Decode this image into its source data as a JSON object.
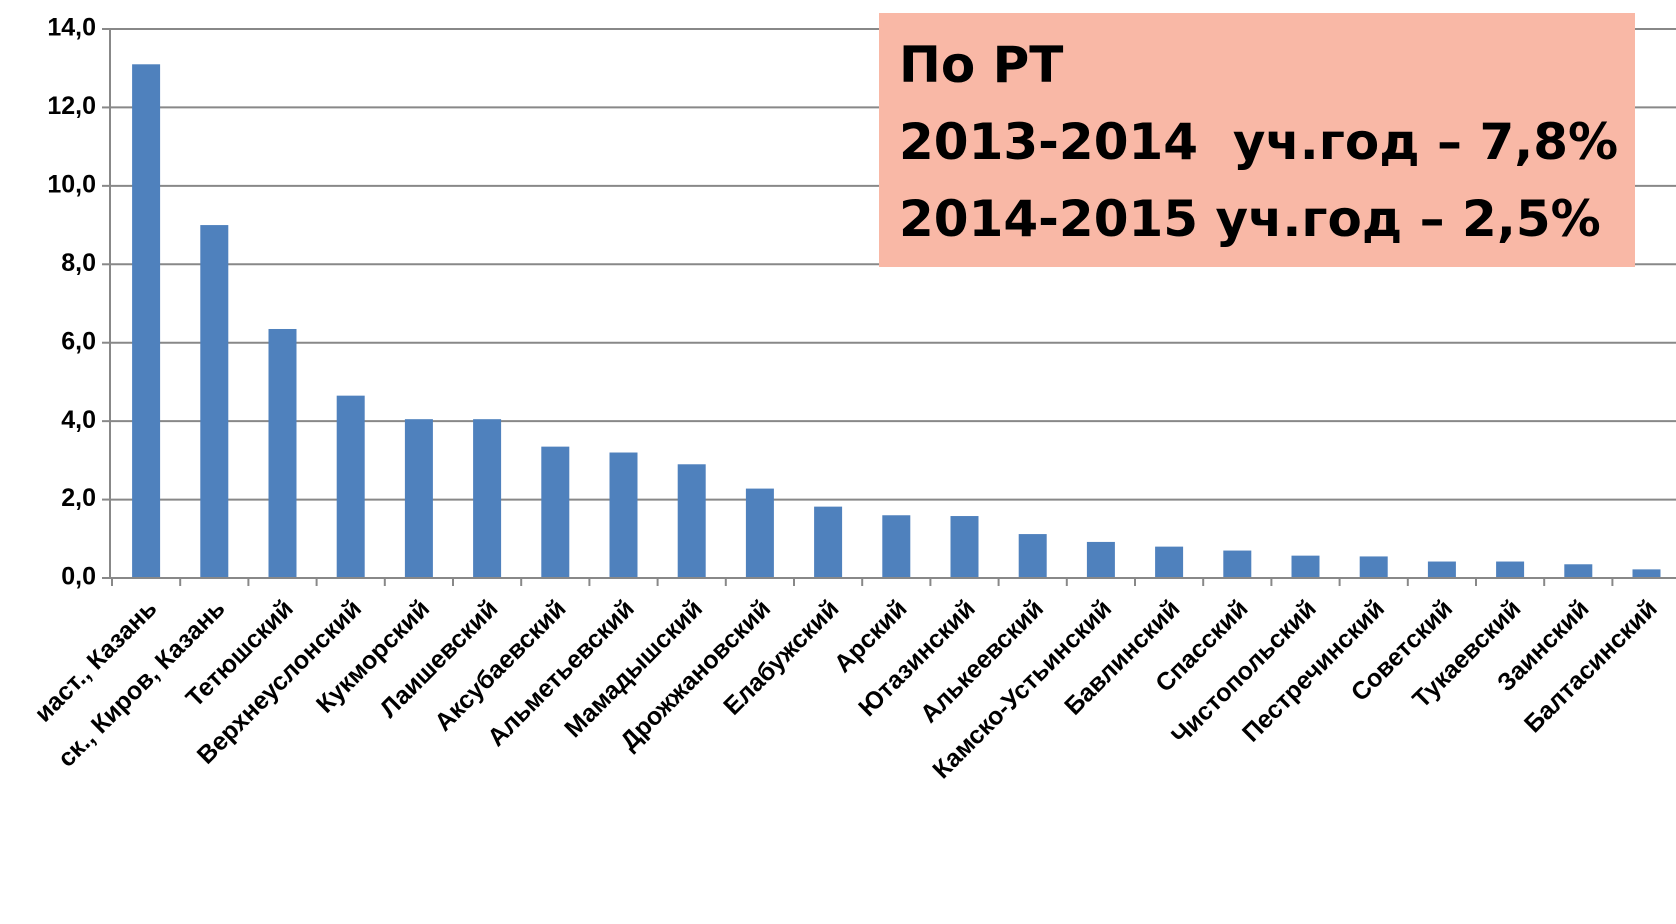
{
  "chart_data": {
    "type": "bar",
    "categories": [
      "иаст., Казань",
      "ск., Киров, Казань",
      "Тетюшский",
      "Верхнеуслонский",
      "Кукморский",
      "Лаишевский",
      "Аксубаевский",
      "Альметьевский",
      "Мамадышский",
      "Дрожжановский",
      "Елабужский",
      "Арский",
      "Ютазинский",
      "Алькеевский",
      "Камско-Устьинский",
      "Бавлинский",
      "Спасский",
      "Чистопольский",
      "Пестречинский",
      "Советский",
      "Тукаевский",
      "Заинский",
      "Балтасинский"
    ],
    "values": [
      13.1,
      9.0,
      6.35,
      4.65,
      4.05,
      4.05,
      3.35,
      3.2,
      2.9,
      2.28,
      1.82,
      1.6,
      1.58,
      1.12,
      0.92,
      0.8,
      0.7,
      0.57,
      0.55,
      0.42,
      0.42,
      0.35,
      0.22
    ],
    "color": "#4f81bd",
    "ylim": [
      0,
      14
    ],
    "yticks": [
      {
        "value": 0,
        "label": "0,0"
      },
      {
        "value": 2,
        "label": "2,0"
      },
      {
        "value": 4,
        "label": "4,0"
      },
      {
        "value": 6,
        "label": "6,0"
      },
      {
        "value": 8,
        "label": "8,0"
      },
      {
        "value": 10,
        "label": "10,0"
      },
      {
        "value": 12,
        "label": "12,0"
      },
      {
        "value": 14,
        "label": "14,0"
      }
    ],
    "grid": true,
    "annotation": {
      "color": "#f9b8a6",
      "lines": [
        "По РТ",
        "2013-2014  уч.год – 7,8%",
        "2014-2015 уч.год – 2,5%"
      ]
    }
  }
}
